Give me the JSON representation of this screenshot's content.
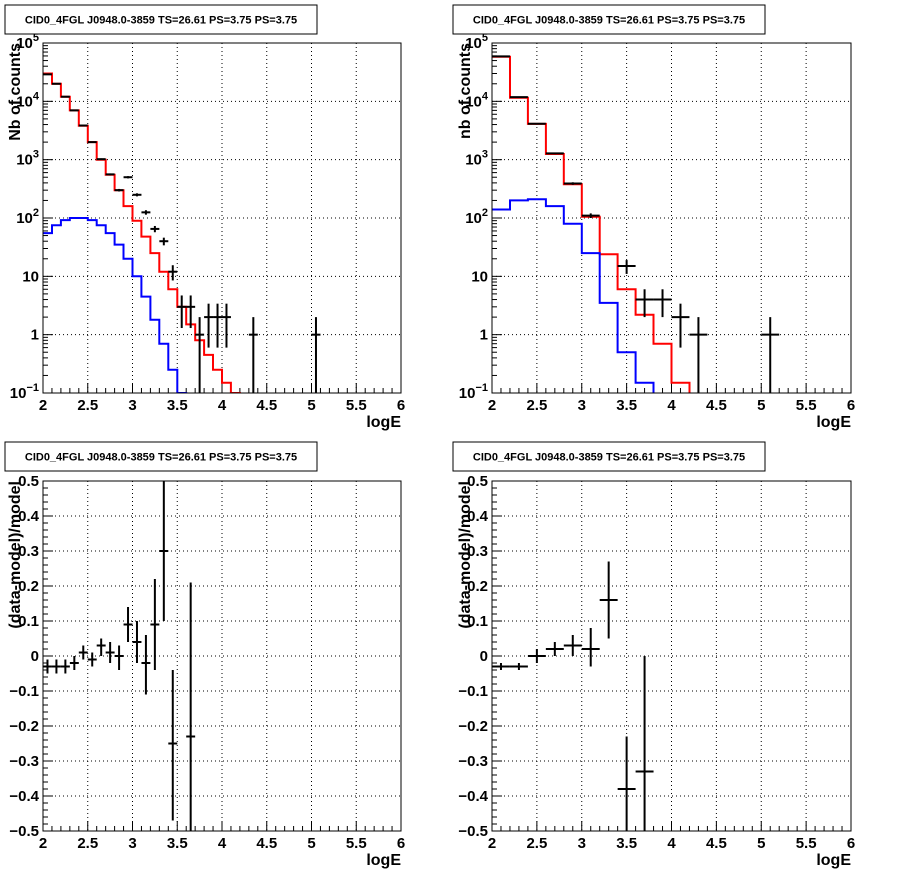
{
  "chart_data": [
    {
      "type": "histogram",
      "title": "CID0_4FGL J0948.0-3859 TS=26.61 PS=3.75 PS=3.75",
      "xlabel": "logE",
      "ylabel": "Nb of counts",
      "xlim": [
        2,
        6
      ],
      "ylim": [
        0.1,
        100000
      ],
      "yscale": "log",
      "grid": true,
      "x_ticks": [
        "2",
        "2.5",
        "3",
        "3.5",
        "4",
        "4.5",
        "5",
        "5.5",
        "6"
      ],
      "y_ticks": [
        {
          "value": 0.1,
          "label": "10",
          "sup": "−1"
        },
        {
          "value": 1,
          "label": "1",
          "sup": ""
        },
        {
          "value": 10,
          "label": "10",
          "sup": ""
        },
        {
          "value": 100,
          "label": "10",
          "sup": "2"
        },
        {
          "value": 1000,
          "label": "10",
          "sup": "3"
        },
        {
          "value": 10000,
          "label": "10",
          "sup": "4"
        },
        {
          "value": 100000,
          "label": "10",
          "sup": "5"
        }
      ],
      "hist_edges": [
        2.0,
        2.1,
        2.2,
        2.3,
        2.4,
        2.5,
        2.6,
        2.7,
        2.8,
        2.9,
        3.0,
        3.1,
        3.2,
        3.3,
        3.4,
        3.5,
        3.6,
        3.7,
        3.8,
        3.9,
        4.0,
        4.1,
        4.2,
        4.3,
        4.4,
        4.5,
        4.6,
        4.7,
        4.8,
        4.9,
        5.0,
        5.1,
        5.2,
        5.3,
        5.4,
        5.5,
        5.6,
        5.7,
        5.8,
        5.9,
        6.0
      ],
      "series": [
        {
          "color": "#ff0000",
          "style": "hist",
          "values": [
            30000,
            20000,
            12000,
            7000,
            3800,
            2000,
            1000,
            550,
            300,
            160,
            90,
            48,
            25,
            12,
            6,
            3,
            1.5,
            0.8,
            0.45,
            0.25,
            0.15,
            0.1,
            0.08,
            0.07,
            0.07,
            0.07,
            0.07,
            0.07,
            0.07,
            0.07,
            0.07,
            0.07,
            0.07,
            0.07,
            0.07,
            0.07,
            0.07,
            0.07,
            0.07,
            0.07
          ]
        },
        {
          "color": "#0000ff",
          "style": "hist",
          "values": [
            55,
            75,
            92,
            100,
            100,
            92,
            75,
            55,
            35,
            20,
            10,
            4.5,
            1.8,
            0.7,
            0.25,
            0.1,
            0.08,
            0.07,
            0.07,
            0.07,
            0.07,
            0.07,
            0.07,
            0.07,
            0.07,
            0.07,
            0.07,
            0.07,
            0.07,
            0.07,
            0.07,
            0.07,
            0.07,
            0.07,
            0.07,
            0.07,
            0.07,
            0.07,
            0.07,
            0.07
          ]
        },
        {
          "color": "#000000",
          "style": "points",
          "points": [
            {
              "x": 2.05,
              "y": 29000,
              "xerr": 0.05,
              "ylo": 28800,
              "yhi": 29200
            },
            {
              "x": 2.15,
              "y": 20000,
              "xerr": 0.05,
              "ylo": 19850,
              "yhi": 20150
            },
            {
              "x": 2.25,
              "y": 12000,
              "xerr": 0.05,
              "ylo": 11890,
              "yhi": 12110
            },
            {
              "x": 2.35,
              "y": 7000,
              "xerr": 0.05,
              "ylo": 6920,
              "yhi": 7080
            },
            {
              "x": 2.45,
              "y": 3850,
              "xerr": 0.05,
              "ylo": 3790,
              "yhi": 3910
            },
            {
              "x": 2.55,
              "y": 2000,
              "xerr": 0.05,
              "ylo": 1955,
              "yhi": 2045
            },
            {
              "x": 2.65,
              "y": 1020,
              "xerr": 0.05,
              "ylo": 990,
              "yhi": 1050
            },
            {
              "x": 2.75,
              "y": 560,
              "xerr": 0.05,
              "ylo": 540,
              "yhi": 580
            },
            {
              "x": 2.85,
              "y": 300,
              "xerr": 0.05,
              "ylo": 285,
              "yhi": 315
            },
            {
              "x": 2.95,
              "y": 500,
              "xerr": 0.05,
              "ylo": 478,
              "yhi": 522
            },
            {
              "x": 3.05,
              "y": 250,
              "xerr": 0.05,
              "ylo": 235,
              "yhi": 265
            },
            {
              "x": 3.15,
              "y": 125,
              "xerr": 0.05,
              "ylo": 114,
              "yhi": 136
            },
            {
              "x": 3.25,
              "y": 65,
              "xerr": 0.05,
              "ylo": 57,
              "yhi": 73
            },
            {
              "x": 3.35,
              "y": 40,
              "xerr": 0.05,
              "ylo": 34,
              "yhi": 46
            },
            {
              "x": 3.45,
              "y": 12,
              "xerr": 0.05,
              "ylo": 8.5,
              "yhi": 15.5
            },
            {
              "x": 3.55,
              "y": 3,
              "xerr": 0.05,
              "ylo": 1.3,
              "yhi": 4.7
            },
            {
              "x": 3.65,
              "y": 3,
              "xerr": 0.05,
              "ylo": 1.3,
              "yhi": 4.7
            },
            {
              "x": 3.75,
              "y": 1,
              "xerr": 0.05,
              "ylo": 0.05,
              "yhi": 2
            },
            {
              "x": 3.85,
              "y": 2,
              "xerr": 0.05,
              "ylo": 0.6,
              "yhi": 3.4
            },
            {
              "x": 3.95,
              "y": 2,
              "xerr": 0.05,
              "ylo": 0.6,
              "yhi": 3.4
            },
            {
              "x": 4.05,
              "y": 2,
              "xerr": 0.05,
              "ylo": 0.6,
              "yhi": 3.4
            },
            {
              "x": 4.35,
              "y": 1,
              "xerr": 0.05,
              "ylo": 0.05,
              "yhi": 2
            },
            {
              "x": 5.05,
              "y": 1,
              "xerr": 0.05,
              "ylo": 0.05,
              "yhi": 2
            }
          ]
        }
      ]
    },
    {
      "type": "histogram",
      "title": "CID0_4FGL J0948.0-3859 TS=26.61 PS=3.75 PS=3.75",
      "xlabel": "logE",
      "ylabel": "nb of counts",
      "xlim": [
        2,
        6
      ],
      "ylim": [
        0.1,
        100000
      ],
      "yscale": "log",
      "grid": true,
      "x_ticks": [
        "2",
        "2.5",
        "3",
        "3.5",
        "4",
        "4.5",
        "5",
        "5.5",
        "6"
      ],
      "y_ticks": [
        {
          "value": 0.1,
          "label": "10",
          "sup": "−1"
        },
        {
          "value": 1,
          "label": "1",
          "sup": ""
        },
        {
          "value": 10,
          "label": "10",
          "sup": ""
        },
        {
          "value": 100,
          "label": "10",
          "sup": "2"
        },
        {
          "value": 1000,
          "label": "10",
          "sup": "3"
        },
        {
          "value": 10000,
          "label": "10",
          "sup": "4"
        },
        {
          "value": 100000,
          "label": "10",
          "sup": "5"
        }
      ],
      "hist_edges": [
        2.0,
        2.2,
        2.4,
        2.6,
        2.8,
        3.0,
        3.2,
        3.4,
        3.6,
        3.8,
        4.0,
        4.2,
        4.4,
        4.6,
        4.8,
        5.0,
        5.2,
        5.4,
        5.6,
        5.8,
        6.0
      ],
      "series": [
        {
          "color": "#ff0000",
          "style": "hist",
          "values": [
            58000,
            11500,
            4100,
            1250,
            380,
            105,
            24,
            6,
            2.2,
            0.7,
            0.15,
            0.07,
            0.07,
            0.07,
            0.07,
            0.07,
            0.07,
            0.07,
            0.07,
            0.07
          ]
        },
        {
          "color": "#0000ff",
          "style": "hist",
          "values": [
            140,
            200,
            210,
            160,
            80,
            25,
            3.5,
            0.5,
            0.15,
            0.07,
            0.07,
            0.07,
            0.07,
            0.07,
            0.07,
            0.07,
            0.07,
            0.07,
            0.07,
            0.07
          ]
        },
        {
          "color": "#000000",
          "style": "points",
          "points": [
            {
              "x": 2.1,
              "y": 59000,
              "xerr": 0.1,
              "ylo": 58700,
              "yhi": 59300
            },
            {
              "x": 2.3,
              "y": 11800,
              "xerr": 0.1,
              "ylo": 11690,
              "yhi": 11910
            },
            {
              "x": 2.5,
              "y": 4120,
              "xerr": 0.1,
              "ylo": 4060,
              "yhi": 4180
            },
            {
              "x": 2.7,
              "y": 1280,
              "xerr": 0.1,
              "ylo": 1245,
              "yhi": 1315
            },
            {
              "x": 2.9,
              "y": 390,
              "xerr": 0.1,
              "ylo": 370,
              "yhi": 410
            },
            {
              "x": 3.1,
              "y": 110,
              "xerr": 0.1,
              "ylo": 100,
              "yhi": 120
            },
            {
              "x": 3.5,
              "y": 15,
              "xerr": 0.1,
              "ylo": 11,
              "yhi": 19
            },
            {
              "x": 3.7,
              "y": 4,
              "xerr": 0.1,
              "ylo": 2,
              "yhi": 6
            },
            {
              "x": 3.9,
              "y": 4,
              "xerr": 0.1,
              "ylo": 2,
              "yhi": 6
            },
            {
              "x": 4.1,
              "y": 2,
              "xerr": 0.1,
              "ylo": 0.6,
              "yhi": 3.4
            },
            {
              "x": 4.3,
              "y": 1,
              "xerr": 0.1,
              "ylo": 0.05,
              "yhi": 2
            },
            {
              "x": 5.1,
              "y": 1,
              "xerr": 0.1,
              "ylo": 0.05,
              "yhi": 2
            }
          ]
        }
      ]
    },
    {
      "type": "scatter",
      "title": "CID0_4FGL J0948.0-3859 TS=26.61 PS=3.75 PS=3.75",
      "xlabel": "logE",
      "ylabel": "(data-model)/model",
      "xlim": [
        2,
        6
      ],
      "ylim": [
        -0.5,
        0.5
      ],
      "yscale": "linear",
      "grid": true,
      "x_ticks": [
        "2",
        "2.5",
        "3",
        "3.5",
        "4",
        "4.5",
        "5",
        "5.5",
        "6"
      ],
      "y_ticks": [
        {
          "value": -0.5,
          "label": "−0.5",
          "sup": ""
        },
        {
          "value": -0.4,
          "label": "−0.4",
          "sup": ""
        },
        {
          "value": -0.3,
          "label": "−0.3",
          "sup": ""
        },
        {
          "value": -0.2,
          "label": "−0.2",
          "sup": ""
        },
        {
          "value": -0.1,
          "label": "−0.1",
          "sup": ""
        },
        {
          "value": 0,
          "label": "0",
          "sup": ""
        },
        {
          "value": 0.1,
          "label": "0.1",
          "sup": ""
        },
        {
          "value": 0.2,
          "label": "0.2",
          "sup": ""
        },
        {
          "value": 0.3,
          "label": "0.3",
          "sup": ""
        },
        {
          "value": 0.4,
          "label": "0.4",
          "sup": ""
        },
        {
          "value": 0.5,
          "label": "0.5",
          "sup": ""
        }
      ],
      "series": [
        {
          "color": "#000000",
          "style": "points",
          "points": [
            {
              "x": 2.05,
              "y": -0.03,
              "xerr": 0.05,
              "ylo": -0.05,
              "yhi": -0.01
            },
            {
              "x": 2.15,
              "y": -0.03,
              "xerr": 0.05,
              "ylo": -0.05,
              "yhi": -0.01
            },
            {
              "x": 2.25,
              "y": -0.03,
              "xerr": 0.05,
              "ylo": -0.05,
              "yhi": -0.01
            },
            {
              "x": 2.35,
              "y": -0.02,
              "xerr": 0.05,
              "ylo": -0.04,
              "yhi": 0.0
            },
            {
              "x": 2.45,
              "y": 0.01,
              "xerr": 0.05,
              "ylo": -0.01,
              "yhi": 0.03
            },
            {
              "x": 2.55,
              "y": -0.01,
              "xerr": 0.05,
              "ylo": -0.03,
              "yhi": 0.01
            },
            {
              "x": 2.65,
              "y": 0.03,
              "xerr": 0.05,
              "ylo": 0.0,
              "yhi": 0.05
            },
            {
              "x": 2.75,
              "y": 0.01,
              "xerr": 0.05,
              "ylo": -0.02,
              "yhi": 0.04
            },
            {
              "x": 2.85,
              "y": 0.0,
              "xerr": 0.05,
              "ylo": -0.04,
              "yhi": 0.03
            },
            {
              "x": 2.95,
              "y": 0.09,
              "xerr": 0.05,
              "ylo": 0.04,
              "yhi": 0.14
            },
            {
              "x": 3.05,
              "y": 0.04,
              "xerr": 0.05,
              "ylo": -0.02,
              "yhi": 0.1
            },
            {
              "x": 3.15,
              "y": -0.02,
              "xerr": 0.05,
              "ylo": -0.11,
              "yhi": 0.06
            },
            {
              "x": 3.25,
              "y": 0.09,
              "xerr": 0.05,
              "ylo": -0.04,
              "yhi": 0.22
            },
            {
              "x": 3.35,
              "y": 0.3,
              "xerr": 0.05,
              "ylo": 0.1,
              "yhi": 0.5
            },
            {
              "x": 3.45,
              "y": -0.25,
              "xerr": 0.05,
              "ylo": -0.47,
              "yhi": -0.04
            },
            {
              "x": 3.65,
              "y": -0.23,
              "xerr": 0.05,
              "ylo": -0.5,
              "yhi": 0.21
            }
          ]
        }
      ]
    },
    {
      "type": "scatter",
      "title": "CID0_4FGL J0948.0-3859 TS=26.61 PS=3.75 PS=3.75",
      "xlabel": "logE",
      "ylabel": "(data-model)/model",
      "xlim": [
        2,
        6
      ],
      "ylim": [
        -0.5,
        0.5
      ],
      "yscale": "linear",
      "grid": true,
      "x_ticks": [
        "2",
        "2.5",
        "3",
        "3.5",
        "4",
        "4.5",
        "5",
        "5.5",
        "6"
      ],
      "y_ticks": [
        {
          "value": -0.5,
          "label": "−0.5",
          "sup": ""
        },
        {
          "value": -0.4,
          "label": "−0.4",
          "sup": ""
        },
        {
          "value": -0.3,
          "label": "−0.3",
          "sup": ""
        },
        {
          "value": -0.2,
          "label": "−0.2",
          "sup": ""
        },
        {
          "value": -0.1,
          "label": "−0.1",
          "sup": ""
        },
        {
          "value": 0,
          "label": "0",
          "sup": ""
        },
        {
          "value": 0.1,
          "label": "0.1",
          "sup": ""
        },
        {
          "value": 0.2,
          "label": "0.2",
          "sup": ""
        },
        {
          "value": 0.3,
          "label": "0.3",
          "sup": ""
        },
        {
          "value": 0.4,
          "label": "0.4",
          "sup": ""
        },
        {
          "value": 0.5,
          "label": "0.5",
          "sup": ""
        }
      ],
      "series": [
        {
          "color": "#000000",
          "style": "points",
          "points": [
            {
              "x": 2.1,
              "y": -0.03,
              "xerr": 0.1,
              "ylo": -0.04,
              "yhi": -0.02
            },
            {
              "x": 2.3,
              "y": -0.03,
              "xerr": 0.1,
              "ylo": -0.04,
              "yhi": -0.02
            },
            {
              "x": 2.5,
              "y": 0.0,
              "xerr": 0.1,
              "ylo": -0.02,
              "yhi": 0.02
            },
            {
              "x": 2.7,
              "y": 0.02,
              "xerr": 0.1,
              "ylo": 0.0,
              "yhi": 0.04
            },
            {
              "x": 2.9,
              "y": 0.03,
              "xerr": 0.1,
              "ylo": 0.0,
              "yhi": 0.06
            },
            {
              "x": 3.1,
              "y": 0.02,
              "xerr": 0.1,
              "ylo": -0.03,
              "yhi": 0.08
            },
            {
              "x": 3.3,
              "y": 0.16,
              "xerr": 0.1,
              "ylo": 0.05,
              "yhi": 0.27
            },
            {
              "x": 3.5,
              "y": -0.38,
              "xerr": 0.1,
              "ylo": -0.5,
              "yhi": -0.23
            },
            {
              "x": 3.7,
              "y": -0.33,
              "xerr": 0.1,
              "ylo": -0.5,
              "yhi": 0.0
            }
          ]
        }
      ]
    }
  ]
}
